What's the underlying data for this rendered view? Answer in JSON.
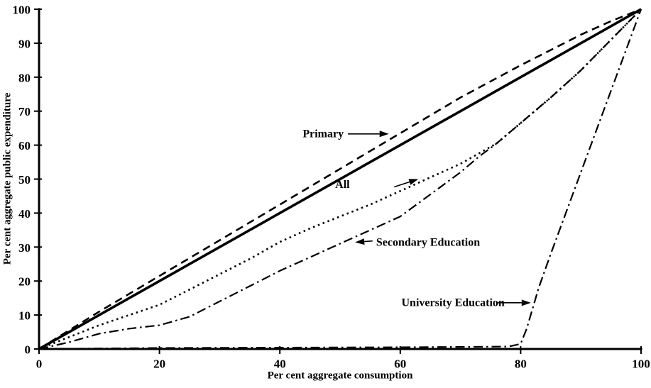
{
  "chart_data": {
    "type": "line",
    "title": "",
    "xlabel": "Per cent aggregate consumption",
    "ylabel": "Per cent aggregate public expenditure",
    "xlim": [
      0,
      100
    ],
    "ylim": [
      0,
      100
    ],
    "grid": false,
    "legend_position": "none (inline arrow annotations)",
    "x_ticks": [
      0,
      20,
      40,
      60,
      80,
      100
    ],
    "y_ticks": [
      0,
      10,
      20,
      30,
      40,
      50,
      60,
      70,
      80,
      90,
      100
    ],
    "line_color": "#000000",
    "background_color": "#ffffff",
    "series": [
      {
        "id": "equality-line",
        "label": "",
        "style": "solid",
        "x": [
          0,
          100
        ],
        "y": [
          0,
          100
        ]
      },
      {
        "id": "primary",
        "label": "Primary",
        "style": "dashed",
        "x": [
          0,
          10,
          20,
          30,
          40,
          50,
          60,
          70,
          80,
          85,
          90,
          95,
          100
        ],
        "y": [
          0,
          11,
          21.5,
          32,
          42.5,
          53,
          63.5,
          74,
          83.5,
          88,
          92.5,
          96.5,
          100
        ]
      },
      {
        "id": "all",
        "label": "All",
        "style": "dotted",
        "x": [
          0,
          5,
          10,
          15,
          20,
          25,
          30,
          35,
          40,
          45,
          50,
          55,
          60,
          65,
          70,
          73,
          76,
          80,
          85,
          90,
          95,
          100
        ],
        "y": [
          0,
          3.5,
          7,
          10,
          13,
          17.5,
          22,
          26.5,
          31.5,
          35.5,
          39,
          42.5,
          46.5,
          50.5,
          54.5,
          57.5,
          60.5,
          66.5,
          74,
          82,
          91,
          100
        ]
      },
      {
        "id": "secondary-education",
        "label": "Secondary Education",
        "style": "dashdot",
        "x": [
          0,
          5,
          10,
          15,
          20,
          25,
          30,
          35,
          40,
          45,
          50,
          55,
          60,
          65,
          70,
          73,
          76,
          80,
          85,
          90,
          95,
          100
        ],
        "y": [
          0,
          2,
          4.5,
          6,
          7,
          9.5,
          14,
          18.5,
          23,
          27,
          31,
          35,
          39,
          45.5,
          52,
          56.5,
          60.5,
          66.5,
          74,
          82,
          91,
          100
        ]
      },
      {
        "id": "university-education",
        "label": "University Education",
        "style": "dashdot",
        "x": [
          0,
          20,
          40,
          60,
          78,
          80,
          81,
          82,
          83,
          85,
          90,
          95,
          100
        ],
        "y": [
          0,
          0.3,
          0.4,
          0.5,
          0.7,
          1.5,
          6,
          12,
          18,
          28,
          52,
          76,
          100
        ]
      }
    ],
    "annotations": [
      {
        "id": "primary",
        "text": "Primary",
        "text_x": 50.6,
        "text_y": 63.3,
        "anchor": "end",
        "arrow": {
          "x1": 51.3,
          "y1": 63.3,
          "x2": 58.1,
          "y2": 63.3
        }
      },
      {
        "id": "all",
        "text": "All",
        "text_x": 50.4,
        "text_y": 48.3,
        "anchor": "middle",
        "arrow": {
          "x1": 59.0,
          "y1": 47.7,
          "x2": 63.0,
          "y2": 50.0
        }
      },
      {
        "id": "secondary-education",
        "text": "Secondary Education",
        "text_x": 56.0,
        "text_y": 31.3,
        "anchor": "start",
        "arrow": {
          "x1": 55.4,
          "y1": 31.8,
          "x2": 52.5,
          "y2": 31.4
        }
      },
      {
        "id": "university-education",
        "text": "University Education",
        "text_x": 60.2,
        "text_y": 13.6,
        "anchor": "start",
        "arrow": {
          "x1": 76.0,
          "y1": 13.6,
          "x2": 81.7,
          "y2": 13.6
        }
      }
    ]
  }
}
